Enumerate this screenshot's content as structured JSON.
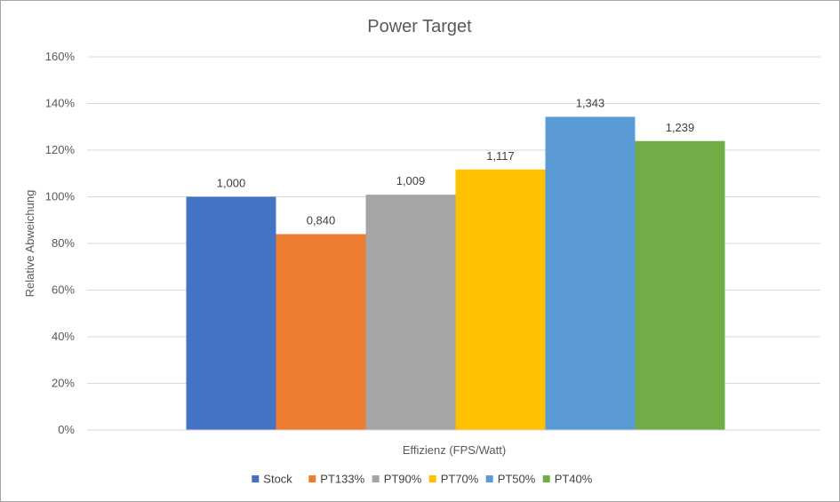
{
  "chart_data": {
    "type": "bar",
    "title": "Power Target",
    "xlabel": "Effizienz (FPS/Watt)",
    "ylabel": "Relative Abweichung",
    "categories": [
      "Effizienz (FPS/Watt)"
    ],
    "ylim": [
      0,
      1.6
    ],
    "yticks": [
      0,
      0.2,
      0.4,
      0.6,
      0.8,
      1.0,
      1.2,
      1.4,
      1.6
    ],
    "ytick_labels": [
      "0%",
      "20%",
      "40%",
      "60%",
      "80%",
      "100%",
      "120%",
      "140%",
      "160%"
    ],
    "grid": true,
    "legend_position": "bottom",
    "series": [
      {
        "name": "Stock",
        "value": 1.0,
        "label": "1,000",
        "color": "#4472C4"
      },
      {
        "name": "PT133%",
        "value": 0.84,
        "label": "0,840",
        "color": "#ED7D31"
      },
      {
        "name": "PT90%",
        "value": 1.009,
        "label": "1,009",
        "color": "#A5A5A5"
      },
      {
        "name": "PT70%",
        "value": 1.117,
        "label": "1,117",
        "color": "#FFC000"
      },
      {
        "name": "PT50%",
        "value": 1.343,
        "label": "1,343",
        "color": "#5B9BD5"
      },
      {
        "name": "PT40%",
        "value": 1.239,
        "label": "1,239",
        "color": "#70AD47"
      }
    ]
  }
}
